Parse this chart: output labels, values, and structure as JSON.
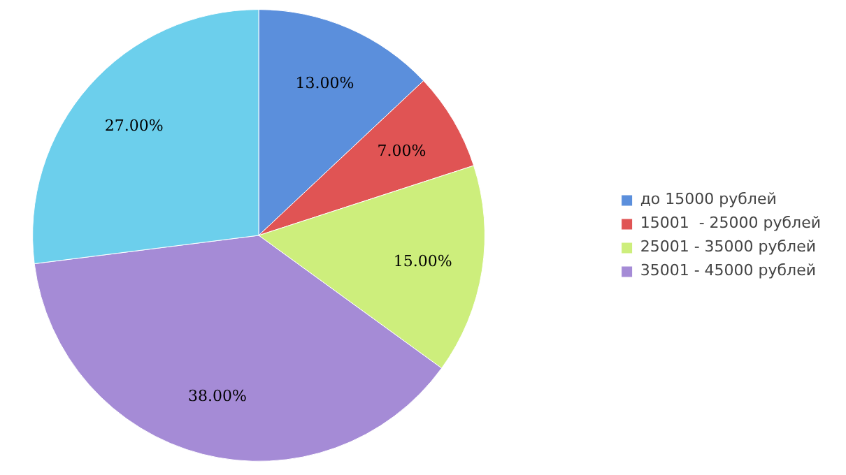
{
  "chart_data": {
    "type": "pie",
    "categories": [
      "до 15000 рублей",
      "15001  - 25000 рублей",
      "25001 - 35000 рублей",
      "35001 - 45000 рублей",
      null
    ],
    "values": [
      13,
      7,
      15,
      38,
      27
    ],
    "colors": [
      "#5b8fdc",
      "#e05454",
      "#cdee7c",
      "#a58bd6",
      "#6ccfec"
    ],
    "value_labels": [
      "13.00%",
      "7.00%",
      "15.00%",
      "38.00%",
      "27.00%"
    ],
    "legend": "right"
  }
}
